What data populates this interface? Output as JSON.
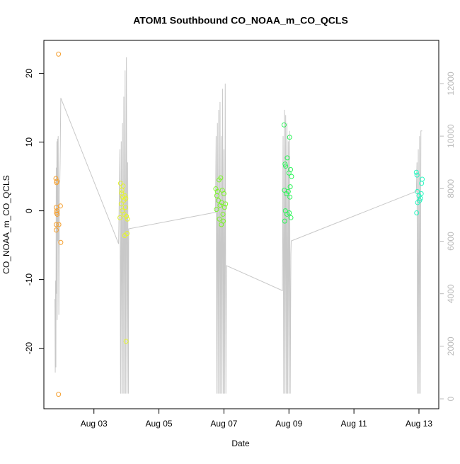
{
  "chart_data": {
    "type": "scatter",
    "title": "ATOM1 Southbound CO_NOAA_m_CO_QCLS",
    "x_label": "Date",
    "y_label": "CO_NOAA_m_CO_QCLS",
    "xlim": [
      1.46,
      13.61
    ],
    "xticks": [
      {
        "value": 3,
        "label": "Aug 03"
      },
      {
        "value": 5,
        "label": "Aug 05"
      },
      {
        "value": 7,
        "label": "Aug 07"
      },
      {
        "value": 9,
        "label": "Aug 09"
      },
      {
        "value": 11,
        "label": "Aug 11"
      },
      {
        "value": 13,
        "label": "Aug 13"
      }
    ],
    "ylim": [
      -28.8,
      24.8
    ],
    "yticks": [
      -20,
      -10,
      0,
      10,
      20
    ],
    "y2lim": [
      -377,
      13644
    ],
    "y2ticks": [
      0,
      2000,
      4000,
      6000,
      8000,
      10000,
      12000
    ],
    "series": [
      {
        "color": "#f5a030",
        "x": [
          1.83,
          1.85,
          1.86,
          1.84,
          1.85,
          1.87,
          1.86,
          1.97,
          1.84,
          1.92,
          1.84,
          1.98,
          1.91,
          1.91
        ],
        "values": [
          4.7,
          4.1,
          4.3,
          0.5,
          -0.3,
          -0.5,
          0,
          0.7,
          -2,
          -2,
          -2.8,
          -4.6,
          -26.7,
          22.8
        ]
      },
      {
        "color": "#e5f52a",
        "x": [
          3.82,
          3.9,
          3.86,
          3.95,
          3.88,
          3.92,
          3.84,
          3.97,
          3.8,
          3.93,
          3.87,
          4.0,
          3.98,
          4.02,
          3.95,
          4.03,
          3.99,
          3.85
        ],
        "values": [
          4.0,
          3.6,
          3.0,
          2.2,
          2.0,
          1.5,
          1.0,
          0.5,
          -1.0,
          -0.5,
          0,
          -0.8,
          1.8,
          -3.3,
          -3.6,
          -1.2,
          -19.0,
          2.6
        ]
      },
      {
        "color": "#7cf52a",
        "x": [
          6.75,
          6.8,
          6.78,
          6.85,
          6.9,
          6.95,
          6.83,
          7.0,
          6.88,
          6.93,
          7.02,
          6.97,
          7.05,
          6.86,
          6.92,
          6.98,
          6.77
        ],
        "values": [
          3.2,
          2.8,
          2.2,
          4.5,
          4.8,
          3.0,
          1.5,
          2.5,
          0.8,
          1.2,
          0.5,
          -0.5,
          1.0,
          -1.2,
          -2.0,
          -1.5,
          0.2
        ]
      },
      {
        "color": "#2af558",
        "x": [
          8.85,
          8.88,
          8.95,
          9.02,
          9.05,
          8.9,
          9.0,
          9.08,
          8.86,
          8.92,
          8.98,
          9.03,
          8.89,
          8.94,
          9.06,
          8.87,
          9.01,
          9.04
        ],
        "values": [
          12.5,
          6.8,
          7.7,
          10.7,
          6.0,
          6.5,
          5.5,
          5.0,
          3.0,
          2.5,
          2.8,
          2.0,
          0,
          -0.5,
          -1.0,
          -1.5,
          -0.3,
          3.5
        ]
      },
      {
        "color": "#2af5c0",
        "x": [
          12.92,
          12.94,
          12.95,
          13.0,
          13.05,
          13.08,
          13.02,
          12.96,
          13.07,
          12.93,
          13.1
        ],
        "values": [
          5.6,
          5.2,
          2.8,
          2.2,
          1.8,
          4.0,
          1.5,
          1.2,
          2.5,
          -0.3,
          4.6
        ]
      },
      {
        "type": "line",
        "axis": "y2",
        "color": "#c8c8c8",
        "x": [
          1.8,
          1.81,
          1.82,
          1.83,
          1.84,
          1.85,
          1.86,
          1.87,
          1.88,
          1.89,
          1.9,
          1.92,
          1.94,
          1.96,
          1.98,
          3.76,
          3.8,
          3.82,
          3.84,
          3.86,
          3.88,
          3.9,
          3.92,
          3.94,
          3.96,
          3.98,
          4.0,
          4.02,
          4.04,
          4.06,
          4.07,
          6.74,
          6.76,
          6.78,
          6.8,
          6.82,
          6.84,
          6.86,
          6.88,
          6.9,
          6.92,
          6.94,
          6.96,
          6.98,
          7.0,
          7.02,
          7.04,
          7.06,
          7.08,
          8.8,
          8.82,
          8.84,
          8.86,
          8.88,
          8.9,
          8.92,
          8.94,
          8.96,
          8.98,
          9.0,
          9.02,
          9.04,
          9.06,
          9.07,
          12.92,
          12.94,
          12.96,
          12.98,
          13.0,
          13.02,
          13.04,
          13.06,
          13.08,
          13.1
        ],
        "values": [
          3800,
          1000,
          4500,
          1200,
          8800,
          4000,
          9800,
          3000,
          9900,
          6000,
          10000,
          3200,
          7500,
          9000,
          11450,
          5900,
          9500,
          200,
          9800,
          200,
          10500,
          200,
          11500,
          200,
          12500,
          200,
          13000,
          200,
          9000,
          200,
          6470,
          7100,
          10000,
          200,
          10500,
          200,
          11000,
          200,
          11300,
          200,
          10000,
          200,
          11800,
          200,
          9500,
          200,
          12000,
          200,
          5070,
          4120,
          10000,
          200,
          11000,
          200,
          10800,
          200,
          10500,
          200,
          9800,
          200,
          10200,
          200,
          5500,
          6010,
          7900,
          9000,
          200,
          9500,
          200,
          10000,
          200,
          10200,
          10200,
          10200
        ]
      }
    ]
  }
}
